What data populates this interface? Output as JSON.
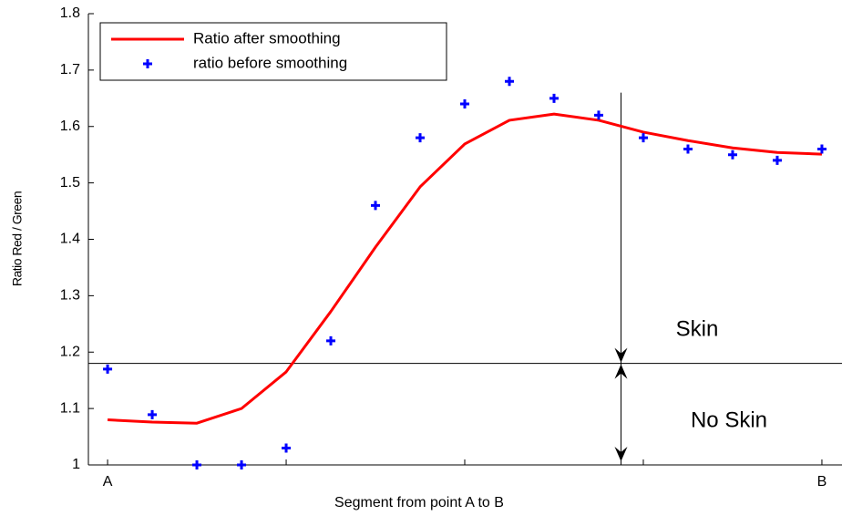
{
  "chart_data": {
    "type": "line",
    "x_label": "Segment from point A to B",
    "y_label": "Ratio Red / Green",
    "x": [
      0,
      1,
      2,
      3,
      4,
      5,
      6,
      7,
      8,
      9,
      10,
      11,
      12,
      13,
      14,
      15,
      16
    ],
    "series": [
      {
        "name": "Ratio after smoothing",
        "type": "line",
        "color": "#ff0000",
        "values": [
          1.08,
          1.076,
          1.074,
          1.1,
          1.165,
          1.272,
          1.386,
          1.493,
          1.569,
          1.611,
          1.622,
          1.611,
          1.59,
          1.575,
          1.562,
          1.554,
          1.551
        ]
      },
      {
        "name": "ratio before smoothing",
        "type": "scatter",
        "color": "#0000ff",
        "values": [
          1.17,
          1.089,
          1.0,
          1.0,
          1.03,
          1.22,
          1.46,
          1.58,
          1.64,
          1.68,
          1.65,
          1.62,
          1.58,
          1.56,
          1.55,
          1.54,
          1.56
        ]
      }
    ],
    "xlim": [
      -0.43,
      16.45
    ],
    "ylim": [
      1,
      1.8
    ],
    "xticks": [
      {
        "value": 0,
        "label": "A"
      },
      {
        "value": 4,
        "label": null
      },
      {
        "value": 8,
        "label": null
      },
      {
        "value": 12,
        "label": null
      },
      {
        "value": 16,
        "label": "B"
      }
    ],
    "yticks": [
      1,
      1.1,
      1.2,
      1.3,
      1.4,
      1.5,
      1.6,
      1.7,
      1.8
    ],
    "threshold": 1.18,
    "marker_x": 11.5,
    "marker_top": 1.66,
    "annotations": [
      "Skin",
      "No Skin"
    ],
    "legend": "upper left",
    "grid": false
  }
}
